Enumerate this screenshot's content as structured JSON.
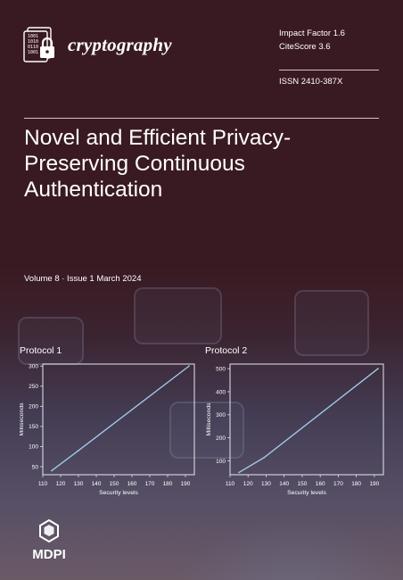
{
  "journal": {
    "name": "cryptography"
  },
  "metrics": {
    "impact_factor": "Impact Factor 1.6",
    "citescore": "CiteScore 3.6",
    "issn": "ISSN 2410-387X"
  },
  "article": {
    "title": "Novel and Efficient Privacy-Preserving Continuous Authentication"
  },
  "issue": {
    "volume_line": "Volume 8 · Issue 1 March 2024"
  },
  "publisher": {
    "name": "MDPI"
  },
  "colors": {
    "background": "#3a1a22",
    "line": "#9fc9e8",
    "panel": "#ffffff"
  },
  "chart_data": [
    {
      "type": "line",
      "title": "Protocol 1",
      "xlabel": "Security levels",
      "ylabel": "Milliseconds",
      "x": [
        110,
        120,
        130,
        140,
        150,
        160,
        170,
        180,
        190
      ],
      "xticks": [
        "110",
        "120",
        "130",
        "140",
        "150",
        "160",
        "170",
        "180",
        "190"
      ],
      "yticks": [
        "50",
        "100",
        "150",
        "200",
        "250",
        "300"
      ],
      "xlim": [
        110,
        195
      ],
      "ylim": [
        30,
        305
      ],
      "series": [
        {
          "x": [
            115,
            130,
            192
          ],
          "values": [
            40,
            90,
            300
          ]
        }
      ],
      "grid": false
    },
    {
      "type": "line",
      "title": "Protocol 2",
      "xlabel": "Security levels",
      "ylabel": "Milliseconds",
      "x": [
        110,
        120,
        130,
        140,
        150,
        160,
        170,
        180,
        190
      ],
      "xticks": [
        "110",
        "120",
        "130",
        "140",
        "150",
        "160",
        "170",
        "180",
        "190"
      ],
      "yticks": [
        "100",
        "200",
        "300",
        "400",
        "500"
      ],
      "xlim": [
        110,
        195
      ],
      "ylim": [
        40,
        520
      ],
      "series": [
        {
          "x": [
            115,
            129,
            192
          ],
          "values": [
            50,
            115,
            500
          ]
        }
      ],
      "grid": false
    }
  ]
}
